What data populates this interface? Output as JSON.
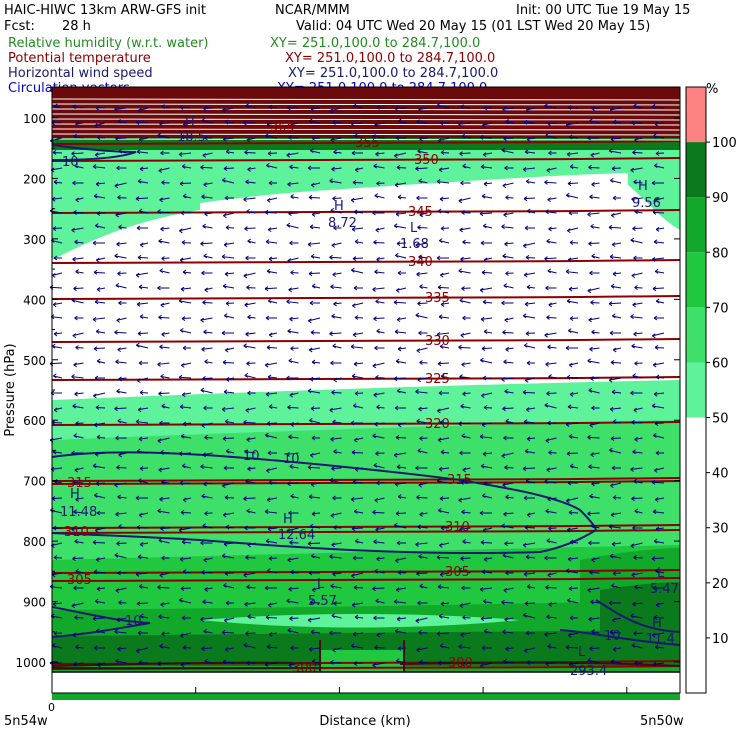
{
  "header": {
    "title": "HAIC-HIWC 13km ARW-GFS init",
    "center": "NCAR/MMM",
    "init": "Init: 00 UTC Tue 19 May 15",
    "fcst_label": "Fcst:",
    "fcst_value": "28 h",
    "valid": "Valid: 04 UTC Wed 20 May 15 (01 LST Wed 20 May 15)"
  },
  "legend": [
    {
      "name": "Relative humidity (w.r.t. water)",
      "xy": "XY= 251.0,100.0 to 284.7,100.0",
      "color": "#228b22"
    },
    {
      "name": "Potential temperature",
      "xy": "XY= 251.0,100.0 to 284.7,100.0",
      "color": "#8b0000"
    },
    {
      "name": "Horizontal wind speed",
      "xy": "XY= 251.0,100.0 to 284.7,100.0",
      "color": "#191970"
    },
    {
      "name": "Circulation vectors",
      "xy": "XY= 251.0,100.0 to 284.7,100.0",
      "color": "#0000cd"
    }
  ],
  "chart_data": {
    "type": "cross-section",
    "ylabel": "Pressure (hPa)",
    "xlabel": "Distance (km)",
    "x_origin_label": "0",
    "x_left_label": "5n54w",
    "x_right_label": "5n50w",
    "yticks": [
      100,
      200,
      300,
      400,
      500,
      600,
      700,
      800,
      900,
      1000
    ],
    "ylim": [
      1050,
      70
    ],
    "colorbar": {
      "unit": "%",
      "ticks": [
        10,
        20,
        30,
        40,
        50,
        60,
        70,
        80,
        90,
        100
      ],
      "bands": [
        {
          "from": 0,
          "to": 50,
          "color": "#ffffff"
        },
        {
          "from": 50,
          "to": 60,
          "color": "#5ef29a"
        },
        {
          "from": 60,
          "to": 70,
          "color": "#3ee06a"
        },
        {
          "from": 70,
          "to": 80,
          "color": "#20c840"
        },
        {
          "from": 80,
          "to": 90,
          "color": "#12a82a"
        },
        {
          "from": 90,
          "to": 100,
          "color": "#0a7a1c"
        },
        {
          "from": 100,
          "to": 110,
          "color": "#ff8282"
        }
      ]
    },
    "theta_labels": [
      "300",
      "300",
      "305",
      "305",
      "310",
      "310",
      "315",
      "315",
      "320",
      "325",
      "330",
      "335",
      "340",
      "345",
      "350",
      "355",
      "365"
    ],
    "wind_labels": [
      "10",
      "10",
      "10",
      "10",
      "10"
    ],
    "extrema": [
      {
        "kind": "H",
        "value": "11.48"
      },
      {
        "kind": "H",
        "value": "12.64"
      },
      {
        "kind": "L",
        "value": "5.57"
      },
      {
        "kind": "L",
        "value": "5.47"
      },
      {
        "kind": "H",
        "value": "11.4"
      },
      {
        "kind": "L",
        "value": "293.4"
      },
      {
        "kind": "H",
        "value": "8.72"
      },
      {
        "kind": "L",
        "value": "1.68"
      },
      {
        "kind": "H",
        "value": "9.56"
      },
      {
        "kind": "H",
        "value": "18.5"
      }
    ]
  }
}
